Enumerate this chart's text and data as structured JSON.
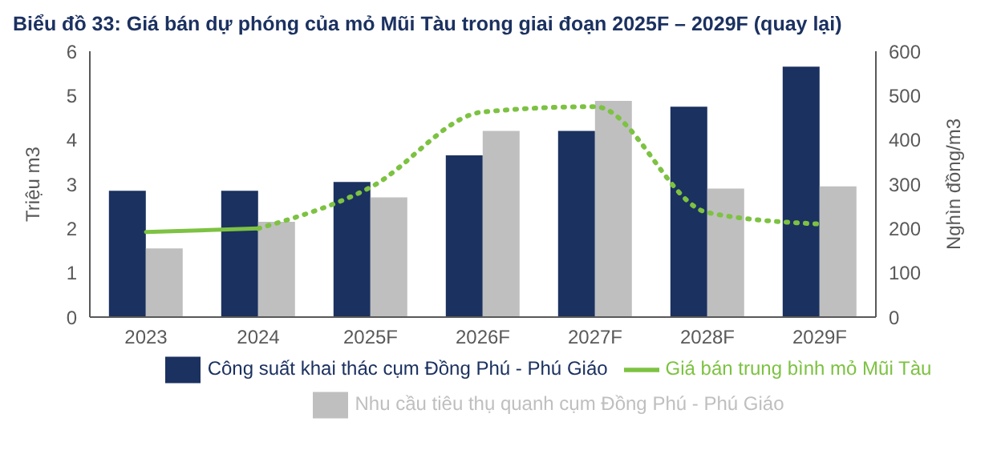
{
  "chart_data": {
    "type": "bar",
    "title": "Biểu đồ 33: Giá bán dự phóng của mỏ Mũi Tàu trong giai đoạn 2025F – 2029F (quay lại)",
    "ylabel": "Triệu m3",
    "y2label": "Nghìn đồng/m3",
    "categories": [
      "2023",
      "2024",
      "2025F",
      "2026F",
      "2027F",
      "2028F",
      "2029F"
    ],
    "series": [
      {
        "name": "Công suất khai thác cụm Đồng Phú - Phú Giáo",
        "color": "#1b3160",
        "values": [
          2.85,
          2.85,
          3.05,
          3.65,
          4.2,
          4.75,
          5.65
        ]
      },
      {
        "name": "Nhu cầu tiêu thụ quanh cụm Đồng Phú - Phú Giáo",
        "color": "#bfbfbf",
        "values": [
          1.55,
          2.15,
          2.7,
          4.2,
          4.88,
          2.9,
          2.95
        ]
      },
      {
        "name": "Giá bán trung bình mỏ Mũi Tàu",
        "type": "line",
        "axis": "y2",
        "color": "#7dc242",
        "line_style": "solid",
        "values": [
          192,
          200,
          null,
          null,
          null,
          null,
          null
        ]
      },
      {
        "type": "line",
        "axis": "y2",
        "color": "#7dc242",
        "line_style": "dotted",
        "values": [
          null,
          200,
          293,
          463,
          475,
          236,
          210
        ]
      }
    ],
    "ylim": [
      0,
      6
    ],
    "yticks": [
      0,
      1,
      2,
      3,
      4,
      5,
      6
    ],
    "y2lim": [
      0,
      600
    ],
    "y2ticks": [
      0,
      100,
      200,
      300,
      400,
      500,
      600
    ],
    "grid": false,
    "legend": "bottom",
    "marker": "none"
  }
}
